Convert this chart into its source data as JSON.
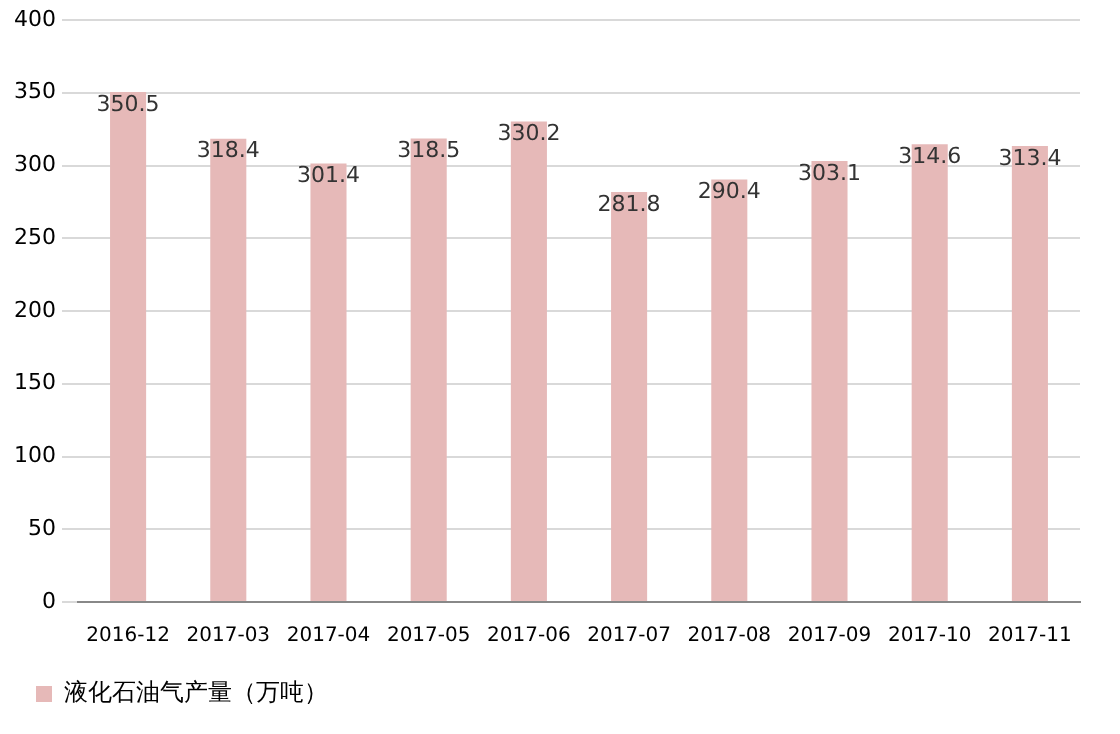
{
  "chart_data": {
    "type": "bar",
    "categories": [
      "2016-12",
      "2017-03",
      "2017-04",
      "2017-05",
      "2017-06",
      "2017-07",
      "2017-08",
      "2017-09",
      "2017-10",
      "2017-11"
    ],
    "series": [
      {
        "name": "液化石油气产量（万吨）",
        "color": "#e6b9b8",
        "values": [
          350.5,
          318.4,
          301.4,
          318.5,
          330.2,
          281.8,
          290.4,
          303.1,
          314.6,
          313.4
        ]
      }
    ],
    "ylim": [
      0,
      400
    ],
    "yticks": [
      0,
      50,
      100,
      150,
      200,
      250,
      300,
      350,
      400
    ],
    "grid": "y",
    "legend": "bottom left",
    "data_labels": true
  }
}
